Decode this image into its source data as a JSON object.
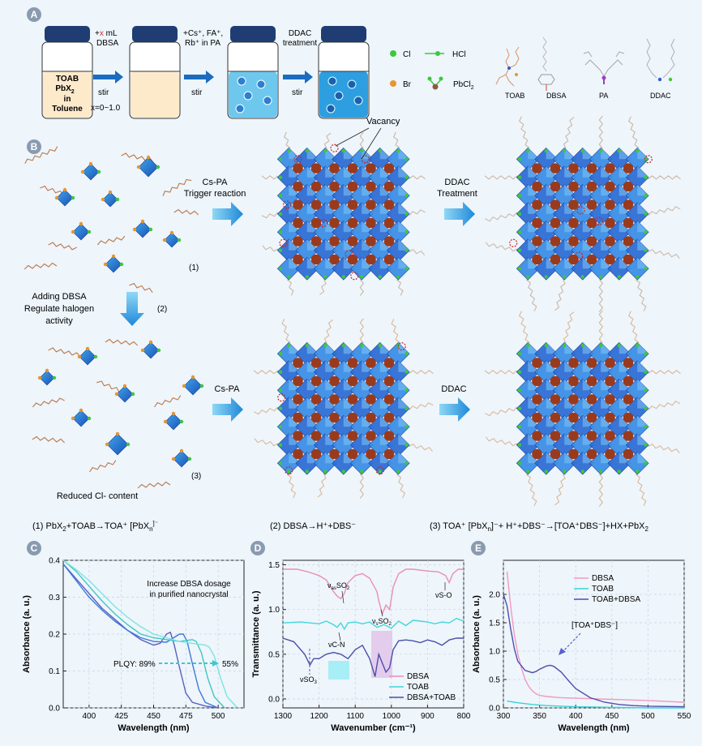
{
  "panel_letters": {
    "a": "A",
    "b": "B",
    "c": "C",
    "d": "D",
    "e": "E"
  },
  "panel_a": {
    "vial1": {
      "line1": "TOAB",
      "line2": "PbX",
      "line2_sub": "2",
      "line3": "in",
      "line4": "Toluene"
    },
    "step1": {
      "plus": "+",
      "x": "x",
      "rest": " mL",
      "reagent": "DBSA",
      "action": "stir",
      "range": "x=0~1.0"
    },
    "step2": {
      "line1": "+Cs⁺, FA⁺,",
      "line2": "Rb⁺ in PA",
      "action": "stir"
    },
    "step3": {
      "line1": "DDAC",
      "line2": "treatment",
      "action": "stir"
    },
    "legend": {
      "cl": "Cl",
      "br": "Br",
      "hcl": "HCl",
      "pbcl2": "PbCl",
      "pbcl2_sub": "2"
    },
    "molecules": {
      "toab": "TOAB",
      "dbsa": "DBSA",
      "pa": "PA",
      "ddac": "DDAC"
    },
    "colors": {
      "cap": "#1f3d73",
      "cream": "#fdeacb",
      "blue1": "#6ec8ee",
      "blue2": "#2d9fe0",
      "arrow": "#1a6cc0",
      "cl": "#3cc83c",
      "br": "#e8962e"
    }
  },
  "panel_b": {
    "arrow1": {
      "line1": "Cs-PA",
      "line2": "Trigger reaction"
    },
    "arrow2": {
      "line1": "DDAC",
      "line2": "Treatment"
    },
    "arrow3": "Cs-PA",
    "arrow4": "DDAC",
    "vacancy": "Vacancy",
    "label1": "(1)",
    "label2": "(2)",
    "label3": "(3)",
    "adding": {
      "line1": "Adding DBSA",
      "line2": "Regulate halogen",
      "line3": "activity"
    },
    "reduced": "Reduced Cl- content",
    "eq1": {
      "a": "(1) PbX",
      "a_sub": "2",
      "b": "+TOAB→TOA⁺ [PbX",
      "b_sub": "n",
      "b_sup": "]⁻"
    },
    "eq2": {
      "a": "(2) DBSA→H⁺+DBS⁻"
    },
    "eq3": {
      "a": "(3) TOA⁺ [PbX",
      "a_sub": "n",
      "b": "]⁻+ H⁺+DBS⁻→[TOA⁺DBS⁻]+HX+PbX",
      "b_sub": "2"
    }
  },
  "panel_c": {
    "chart_data": {
      "type": "line",
      "xlabel": "Wavelength (nm)",
      "ylabel": "Absorbance (a. u.)",
      "xlim": [
        380,
        520
      ],
      "ylim": [
        0,
        0.4
      ],
      "xticks": [
        400,
        425,
        450,
        475,
        500
      ],
      "yticks": [
        0.0,
        0.1,
        0.2,
        0.3,
        0.4
      ],
      "annotation": {
        "line1": "Increase DBSA dosage",
        "line2": "in purified nanocrystal"
      },
      "plqy": {
        "left": "PLQY: 89%",
        "right": "55%"
      },
      "series": [
        {
          "name": "s1",
          "color": "#5a5fbf",
          "x": [
            380,
            390,
            400,
            410,
            420,
            430,
            440,
            450,
            455,
            460,
            463,
            466,
            470,
            475,
            480,
            490,
            500
          ],
          "y": [
            0.39,
            0.35,
            0.31,
            0.27,
            0.24,
            0.21,
            0.185,
            0.17,
            0.175,
            0.2,
            0.205,
            0.17,
            0.11,
            0.04,
            0.015,
            0.005,
            0.0
          ]
        },
        {
          "name": "s2",
          "color": "#3d7ad8",
          "x": [
            380,
            390,
            400,
            410,
            420,
            430,
            440,
            450,
            460,
            470,
            473,
            476,
            480,
            485,
            490,
            500
          ],
          "y": [
            0.39,
            0.345,
            0.3,
            0.265,
            0.235,
            0.21,
            0.19,
            0.18,
            0.178,
            0.2,
            0.2,
            0.18,
            0.12,
            0.05,
            0.015,
            0.0
          ]
        },
        {
          "name": "s3",
          "color": "#3fc7c0",
          "x": [
            380,
            390,
            400,
            410,
            420,
            430,
            440,
            450,
            460,
            470,
            480,
            483,
            487,
            492,
            497,
            505
          ],
          "y": [
            0.4,
            0.37,
            0.33,
            0.29,
            0.255,
            0.225,
            0.2,
            0.19,
            0.185,
            0.18,
            0.185,
            0.18,
            0.15,
            0.08,
            0.03,
            0.0
          ]
        },
        {
          "name": "s4",
          "color": "#7fe3e0",
          "x": [
            380,
            390,
            400,
            410,
            420,
            430,
            440,
            450,
            460,
            470,
            480,
            490,
            493,
            497,
            502,
            507,
            515
          ],
          "y": [
            0.4,
            0.375,
            0.345,
            0.31,
            0.275,
            0.245,
            0.22,
            0.2,
            0.19,
            0.18,
            0.175,
            0.17,
            0.165,
            0.14,
            0.08,
            0.03,
            0.0
          ]
        }
      ]
    }
  },
  "panel_d": {
    "chart_data": {
      "type": "line",
      "xlabel": "Wavenumber (cm⁻¹)",
      "ylabel": "Transmittance (a. u.)",
      "xlim": [
        1300,
        800
      ],
      "ylim": [
        -0.1,
        1.55
      ],
      "xticks": [
        1300,
        1200,
        1100,
        1000,
        900,
        800
      ],
      "yticks": [
        0.0,
        0.5,
        1.0,
        1.5
      ],
      "legend": [
        "DBSA",
        "TOAB",
        "DBSA+TOAB"
      ],
      "annotations": {
        "vas": "ν",
        "vas_sub": "as",
        "vas_rest": "SO",
        "vas_rest_sub": "2",
        "vs": "ν",
        "vs_sub": "s",
        "vs_rest": "SO",
        "vs_rest_sub": "2",
        "vso": "νS-O",
        "vcn": "νC-N",
        "vso3": "νSO",
        "vso3_sub": "3"
      },
      "series": [
        {
          "name": "DBSA",
          "color": "#e88fb5",
          "x": [
            1300,
            1260,
            1230,
            1200,
            1180,
            1160,
            1150,
            1140,
            1130,
            1120,
            1100,
            1080,
            1060,
            1040,
            1035,
            1025,
            1015,
            1005,
            995,
            980,
            960,
            940,
            900,
            870,
            850,
            840,
            830,
            815,
            800
          ],
          "y": [
            1.45,
            1.45,
            1.42,
            1.38,
            1.33,
            1.2,
            1.15,
            1.12,
            1.18,
            1.3,
            1.38,
            1.4,
            1.35,
            1.2,
            1.1,
            0.95,
            1.05,
            1.0,
            1.25,
            1.4,
            1.45,
            1.45,
            1.43,
            1.42,
            1.38,
            1.3,
            1.4,
            1.45,
            1.45
          ]
        },
        {
          "name": "TOAB",
          "color": "#3fd7dc",
          "x": [
            1300,
            1250,
            1200,
            1180,
            1160,
            1150,
            1140,
            1130,
            1120,
            1100,
            1080,
            1060,
            1040,
            1020,
            1000,
            980,
            960,
            940,
            920,
            900,
            880,
            860,
            840,
            820,
            800
          ],
          "y": [
            0.85,
            0.86,
            0.84,
            0.87,
            0.83,
            0.8,
            0.85,
            0.78,
            0.85,
            0.86,
            0.84,
            0.86,
            0.8,
            0.83,
            0.79,
            0.87,
            0.82,
            0.88,
            0.87,
            0.86,
            0.84,
            0.86,
            0.85,
            0.9,
            0.87
          ]
        },
        {
          "name": "DBSA+TOAB",
          "color": "#4a4fa8",
          "x": [
            1300,
            1270,
            1240,
            1225,
            1215,
            1200,
            1180,
            1160,
            1140,
            1120,
            1100,
            1080,
            1060,
            1045,
            1035,
            1025,
            1015,
            1005,
            995,
            980,
            960,
            940,
            920,
            900,
            880,
            860,
            840,
            820,
            800
          ],
          "y": [
            0.68,
            0.64,
            0.5,
            0.38,
            0.45,
            0.45,
            0.5,
            0.52,
            0.5,
            0.45,
            0.55,
            0.6,
            0.45,
            0.25,
            0.5,
            0.4,
            0.3,
            0.35,
            0.55,
            0.65,
            0.66,
            0.65,
            0.63,
            0.66,
            0.64,
            0.6,
            0.66,
            0.68,
            0.68
          ]
        }
      ]
    }
  },
  "panel_e": {
    "chart_data": {
      "type": "line",
      "xlabel": "Wavelength (nm)",
      "ylabel": "Absorbance (a. u.)",
      "xlim": [
        300,
        550
      ],
      "ylim": [
        0,
        2.6
      ],
      "xticks": [
        300,
        350,
        400,
        450,
        500,
        550
      ],
      "yticks": [
        0.0,
        0.5,
        1.0,
        1.5,
        2.0
      ],
      "legend": [
        "DBSA",
        "TOAB",
        "TOAB+DBSA"
      ],
      "annotation": "[TOA⁺DBS⁻]",
      "series": [
        {
          "name": "DBSA",
          "color": "#f09ac0",
          "x": [
            305,
            310,
            315,
            320,
            325,
            330,
            335,
            340,
            345,
            350,
            360,
            380,
            400,
            450,
            500,
            550
          ],
          "y": [
            2.4,
            1.8,
            1.3,
            0.95,
            0.7,
            0.5,
            0.38,
            0.3,
            0.25,
            0.22,
            0.2,
            0.18,
            0.17,
            0.15,
            0.13,
            0.1
          ]
        },
        {
          "name": "TOAB",
          "color": "#38d3d6",
          "x": [
            305,
            320,
            340,
            360,
            380,
            400,
            450,
            500,
            550
          ],
          "y": [
            0.12,
            0.09,
            0.06,
            0.04,
            0.03,
            0.02,
            0.01,
            0.0,
            0.0
          ]
        },
        {
          "name": "TOAB+DBSA",
          "color": "#4e4eb0",
          "x": [
            300,
            305,
            310,
            315,
            320,
            330,
            340,
            345,
            350,
            360,
            365,
            370,
            380,
            390,
            400,
            420,
            440,
            460,
            480,
            500,
            550
          ],
          "y": [
            2.0,
            1.8,
            1.4,
            1.05,
            0.82,
            0.66,
            0.62,
            0.64,
            0.68,
            0.74,
            0.75,
            0.73,
            0.63,
            0.48,
            0.34,
            0.18,
            0.1,
            0.06,
            0.04,
            0.03,
            0.02
          ]
        }
      ]
    }
  }
}
